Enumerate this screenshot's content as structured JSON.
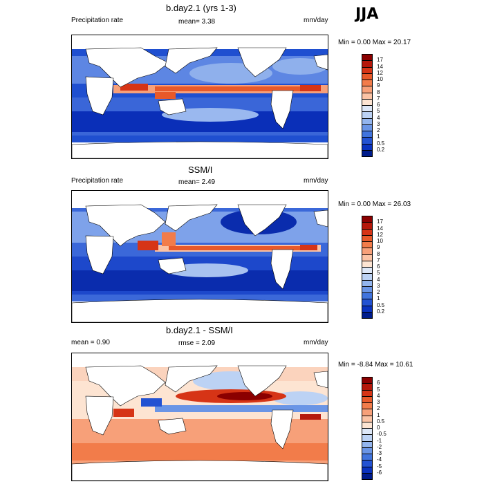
{
  "season": "JJA",
  "panels": [
    {
      "title": "b.day2.1 (yrs 1-3)",
      "left_label": "Precipitation rate",
      "center_label": "mean=   3.38",
      "units": "mm/day",
      "minmax": "Min =   0.00 Max =  20.17"
    },
    {
      "title": "SSM/I",
      "left_label": "Precipitation rate",
      "center_label": "mean=   2.49",
      "units": "mm/day",
      "minmax": "Min =   0.00 Max =  26.03"
    },
    {
      "title": "b.day2.1 - SSM/I",
      "left_label": "mean =   0.90",
      "center_label": "rmse =   2.09",
      "units": "mm/day",
      "minmax": "Min =  -8.84 Max =  10.61"
    }
  ],
  "colorbars": {
    "precip": {
      "labels": [
        "17",
        "14",
        "12",
        "10",
        "9",
        "8",
        "7",
        "6",
        "5",
        "4",
        "3",
        "2",
        "1",
        "0.5",
        "0.2"
      ],
      "colors": [
        "#8b0000",
        "#b5170a",
        "#d63416",
        "#e8592a",
        "#f27c4a",
        "#f7a079",
        "#fbc3a5",
        "#fde4d2",
        "#dde7f7",
        "#bcd2f4",
        "#93b5ee",
        "#6a95e6",
        "#4174dd",
        "#2352d2",
        "#0a32bf",
        "#001c8c"
      ]
    },
    "diff": {
      "labels": [
        "6",
        "5",
        "4",
        "3",
        "2",
        "1",
        "0.5",
        "0",
        "-0.5",
        "-1",
        "-2",
        "-3",
        "-4",
        "-5",
        "-6"
      ],
      "colors": [
        "#8b0000",
        "#b5170a",
        "#d63416",
        "#e8592a",
        "#f27c4a",
        "#f7a079",
        "#fbc3a5",
        "#fde4d2",
        "#dde7f7",
        "#bcd2f4",
        "#93b5ee",
        "#6a95e6",
        "#4174dd",
        "#2352d2",
        "#0a32bf",
        "#001c8c"
      ]
    }
  }
}
